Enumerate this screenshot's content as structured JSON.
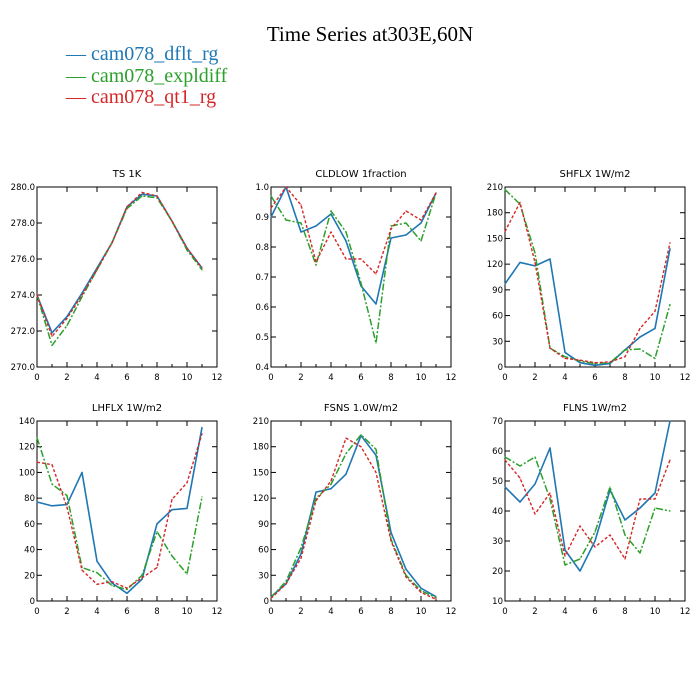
{
  "title": "Time Series at303E,60N",
  "legend": [
    {
      "name": "cam078_dflt_rg",
      "color": "#1f77b4"
    },
    {
      "name": "cam078_expldiff",
      "color": "#2ca02c"
    },
    {
      "name": "cam078_qt1_rg",
      "color": "#d62728"
    }
  ],
  "chart_data": [
    {
      "type": "line",
      "title": "TS   1K",
      "x": [
        0,
        1,
        2,
        3,
        4,
        5,
        6,
        7,
        8,
        9,
        10,
        11
      ],
      "xlim": [
        0,
        12
      ],
      "xticks": [
        0,
        2,
        4,
        6,
        8,
        10,
        12
      ],
      "ylim": [
        270,
        280
      ],
      "yticks": [
        270,
        272,
        274,
        276,
        278,
        280
      ],
      "ytick_labels": [
        "270.0",
        "272.0",
        "274.0",
        "276.0",
        "278.0",
        "280.0"
      ],
      "series": [
        {
          "name": "cam078_dflt_rg",
          "values": [
            274.0,
            271.9,
            272.8,
            274.1,
            275.5,
            276.9,
            278.9,
            279.6,
            279.5,
            278.1,
            276.6,
            275.5
          ]
        },
        {
          "name": "cam078_expldiff",
          "values": [
            274.0,
            271.2,
            272.3,
            273.9,
            275.4,
            276.9,
            278.8,
            279.5,
            279.4,
            278.1,
            276.5,
            275.4
          ]
        },
        {
          "name": "cam078_qt1_rg",
          "values": [
            274.0,
            271.7,
            272.7,
            274.0,
            275.4,
            276.9,
            278.9,
            279.7,
            279.5,
            278.1,
            276.6,
            275.5
          ]
        }
      ]
    },
    {
      "type": "line",
      "title": "CLDLOW   1fraction",
      "x": [
        0,
        1,
        2,
        3,
        4,
        5,
        6,
        7,
        8,
        9,
        10,
        11
      ],
      "xlim": [
        0,
        12
      ],
      "xticks": [
        0,
        2,
        4,
        6,
        8,
        10,
        12
      ],
      "ylim": [
        0.4,
        1.0
      ],
      "yticks": [
        0.4,
        0.5,
        0.6,
        0.7,
        0.8,
        0.9,
        1.0
      ],
      "ytick_labels": [
        "0.4",
        "0.5",
        "0.6",
        "0.7",
        "0.8",
        "0.9",
        "1.0"
      ],
      "series": [
        {
          "name": "cam078_dflt_rg",
          "values": [
            0.9,
            1.0,
            0.85,
            0.87,
            0.91,
            0.82,
            0.67,
            0.61,
            0.83,
            0.84,
            0.88,
            0.98
          ]
        },
        {
          "name": "cam078_expldiff",
          "values": [
            0.97,
            0.89,
            0.88,
            0.74,
            0.92,
            0.85,
            0.68,
            0.48,
            0.87,
            0.88,
            0.82,
            0.98
          ]
        },
        {
          "name": "cam078_qt1_rg",
          "values": [
            0.93,
            1.0,
            0.94,
            0.75,
            0.85,
            0.76,
            0.76,
            0.71,
            0.86,
            0.92,
            0.89,
            0.98
          ]
        }
      ]
    },
    {
      "type": "line",
      "title": "SHFLX   1W/m2",
      "x": [
        0,
        1,
        2,
        3,
        4,
        5,
        6,
        7,
        8,
        9,
        10,
        11
      ],
      "xlim": [
        0,
        12
      ],
      "xticks": [
        0,
        2,
        4,
        6,
        8,
        10,
        12
      ],
      "ylim": [
        0,
        210
      ],
      "yticks": [
        0,
        30,
        60,
        90,
        120,
        150,
        180,
        210
      ],
      "ytick_labels": [
        "0",
        "30",
        "60",
        "90",
        "120",
        "150",
        "180",
        "210"
      ],
      "series": [
        {
          "name": "cam078_dflt_rg",
          "values": [
            97,
            122,
            118,
            126,
            17,
            5,
            2,
            4,
            20,
            35,
            45,
            138
          ]
        },
        {
          "name": "cam078_expldiff",
          "values": [
            207,
            190,
            133,
            22,
            12,
            7,
            4,
            5,
            20,
            21,
            10,
            73
          ]
        },
        {
          "name": "cam078_qt1_rg",
          "values": [
            158,
            192,
            122,
            22,
            10,
            8,
            5,
            6,
            12,
            45,
            65,
            145
          ]
        }
      ]
    },
    {
      "type": "line",
      "title": "LHFLX   1W/m2",
      "x": [
        0,
        1,
        2,
        3,
        4,
        5,
        6,
        7,
        8,
        9,
        10,
        11
      ],
      "xlim": [
        0,
        12
      ],
      "xticks": [
        0,
        2,
        4,
        6,
        8,
        10,
        12
      ],
      "ylim": [
        0,
        140
      ],
      "yticks": [
        0,
        20,
        40,
        60,
        80,
        100,
        120,
        140
      ],
      "ytick_labels": [
        "0",
        "20",
        "40",
        "60",
        "80",
        "100",
        "120",
        "140"
      ],
      "series": [
        {
          "name": "cam078_dflt_rg",
          "values": [
            77,
            74,
            75,
            100,
            31,
            14,
            6,
            17,
            60,
            71,
            72,
            135
          ]
        },
        {
          "name": "cam078_expldiff",
          "values": [
            127,
            91,
            82,
            26,
            22,
            12,
            9,
            20,
            54,
            35,
            21,
            81
          ]
        },
        {
          "name": "cam078_qt1_rg",
          "values": [
            108,
            106,
            73,
            24,
            13,
            15,
            10,
            18,
            26,
            79,
            92,
            130
          ]
        }
      ]
    },
    {
      "type": "line",
      "title": "FSNS   1.0W/m2",
      "x": [
        0,
        1,
        2,
        3,
        4,
        5,
        6,
        7,
        8,
        9,
        10,
        11
      ],
      "xlim": [
        0,
        12
      ],
      "xticks": [
        0,
        2,
        4,
        6,
        8,
        10,
        12
      ],
      "ylim": [
        0,
        210
      ],
      "yticks": [
        0,
        30,
        60,
        90,
        120,
        150,
        180,
        210
      ],
      "ytick_labels": [
        "0",
        "30",
        "60",
        "90",
        "120",
        "150",
        "180",
        "210"
      ],
      "series": [
        {
          "name": "cam078_dflt_rg",
          "values": [
            5,
            20,
            55,
            127,
            131,
            148,
            193,
            170,
            80,
            37,
            15,
            5
          ]
        },
        {
          "name": "cam078_expldiff",
          "values": [
            4,
            23,
            62,
            120,
            136,
            172,
            194,
            177,
            72,
            30,
            12,
            4
          ]
        },
        {
          "name": "cam078_qt1_rg",
          "values": [
            3,
            20,
            50,
            117,
            140,
            190,
            180,
            150,
            70,
            28,
            10,
            2
          ]
        }
      ]
    },
    {
      "type": "line",
      "title": "FLNS   1W/m2",
      "x": [
        0,
        1,
        2,
        3,
        4,
        5,
        6,
        7,
        8,
        9,
        10,
        11
      ],
      "xlim": [
        0,
        12
      ],
      "xticks": [
        0,
        2,
        4,
        6,
        8,
        10,
        12
      ],
      "ylim": [
        10,
        70
      ],
      "yticks": [
        10,
        20,
        30,
        40,
        50,
        60,
        70
      ],
      "ytick_labels": [
        "10",
        "20",
        "30",
        "40",
        "50",
        "60",
        "70"
      ],
      "series": [
        {
          "name": "cam078_dflt_rg",
          "values": [
            48,
            43,
            49,
            61,
            27,
            20,
            30,
            47,
            37,
            41,
            46,
            70
          ]
        },
        {
          "name": "cam078_expldiff",
          "values": [
            58,
            55,
            58,
            44,
            22,
            24,
            33,
            48,
            32,
            26,
            41,
            40
          ]
        },
        {
          "name": "cam078_qt1_rg",
          "values": [
            57,
            51,
            39,
            46,
            25,
            35,
            28,
            32,
            24,
            44,
            44,
            57
          ]
        }
      ]
    }
  ]
}
